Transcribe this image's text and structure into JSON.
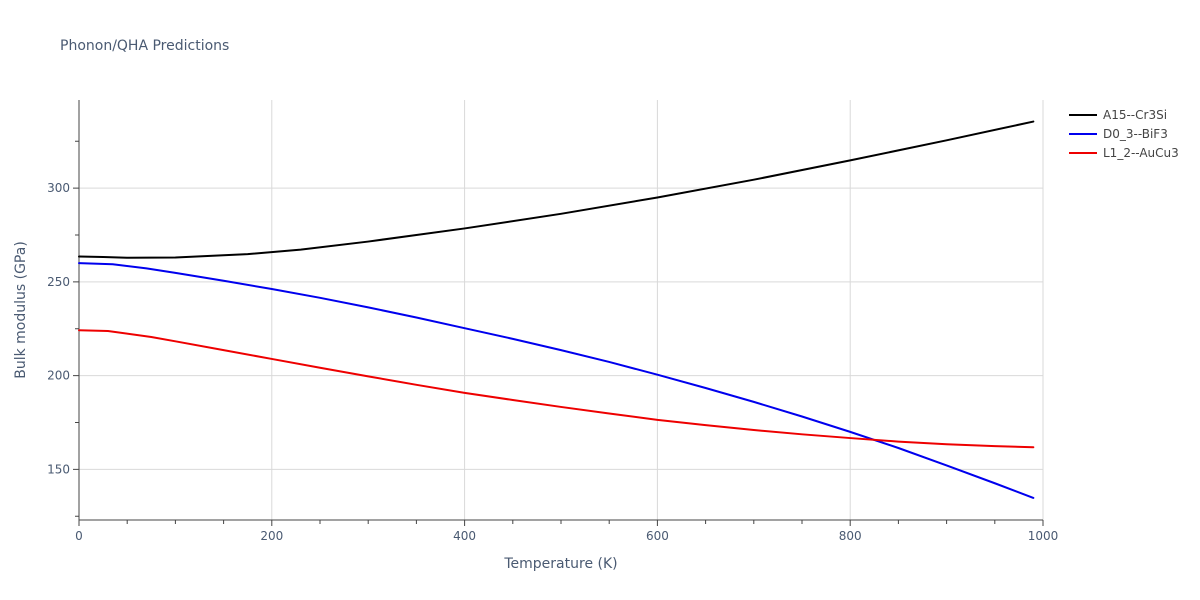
{
  "chart_data": {
    "type": "line",
    "title": "Phonon/QHA Predictions",
    "xlabel": "Temperature (K)",
    "ylabel": "Bulk modulus (GPa)",
    "xlim": [
      0,
      1000
    ],
    "ylim": [
      123,
      347
    ],
    "x_ticks": [
      0,
      200,
      400,
      600,
      800,
      1000
    ],
    "x_tick_labels": [
      "0",
      "200",
      "400",
      "600",
      "800",
      "1000"
    ],
    "y_ticks": [
      150,
      200,
      250,
      300
    ],
    "y_tick_labels": [
      "150",
      "200",
      "250",
      "300"
    ],
    "grid": true,
    "legend_position": "top-right",
    "series": [
      {
        "name": "A15--Cr3Si",
        "color": "#000000",
        "x": [
          0,
          25,
          50,
          100,
          175,
          230,
          300,
          400,
          500,
          600,
          700,
          800,
          900,
          990
        ],
        "y": [
          263.5,
          263.3,
          262.9,
          263.0,
          264.8,
          267.2,
          271.5,
          278.5,
          286.3,
          295.0,
          304.5,
          314.8,
          325.5,
          335.5
        ]
      },
      {
        "name": "D0_3--BiF3",
        "color": "#0000ee",
        "x": [
          0,
          35,
          70,
          100,
          150,
          200,
          250,
          300,
          350,
          400,
          450,
          500,
          550,
          600,
          650,
          700,
          750,
          800,
          850,
          900,
          950,
          990
        ],
        "y": [
          260.0,
          259.4,
          257.2,
          254.8,
          250.6,
          246.2,
          241.5,
          236.4,
          231.0,
          225.3,
          219.6,
          213.6,
          207.3,
          200.5,
          193.4,
          186.0,
          178.2,
          170.0,
          161.4,
          152.1,
          142.6,
          134.8
        ]
      },
      {
        "name": "L1_2--AuCu3",
        "color": "#ee0000",
        "x": [
          0,
          30,
          75,
          100,
          150,
          200,
          250,
          300,
          350,
          400,
          450,
          500,
          550,
          600,
          650,
          700,
          750,
          800,
          850,
          900,
          950,
          990
        ],
        "y": [
          224.2,
          223.8,
          220.6,
          218.3,
          213.6,
          208.9,
          204.2,
          199.6,
          195.1,
          190.8,
          187.0,
          183.3,
          179.8,
          176.4,
          173.6,
          171.0,
          168.7,
          166.7,
          164.8,
          163.4,
          162.4,
          161.8
        ]
      }
    ]
  }
}
